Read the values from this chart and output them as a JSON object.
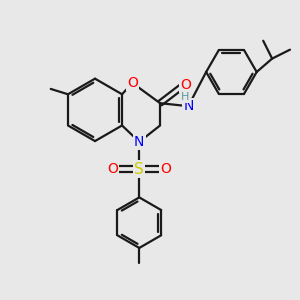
{
  "background_color": "#e8e8e8",
  "line_color": "#1a1a1a",
  "bond_width": 1.6,
  "atom_colors": {
    "O": "#ff0000",
    "N": "#0000ff",
    "S": "#cccc00",
    "H": "#5a9a9a"
  },
  "font_size": 10,
  "fig_size": [
    3.0,
    3.0
  ],
  "dpi": 100
}
